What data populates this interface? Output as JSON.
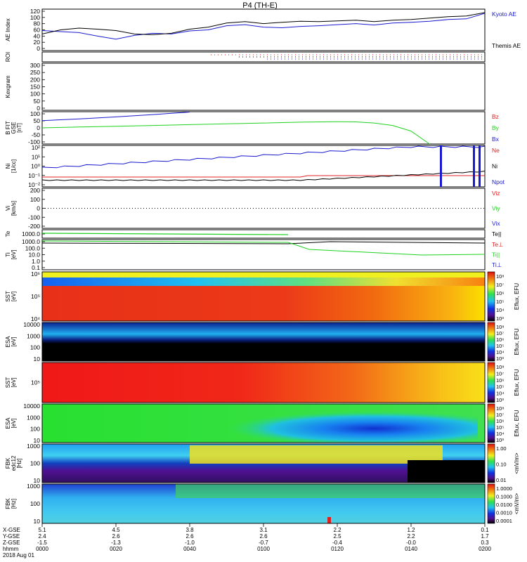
{
  "title": "P4 (TH-E)",
  "colors": {
    "red": "#e02020",
    "green": "#1fd21f",
    "blue": "#1a1ad0",
    "black": "#000000"
  },
  "panels": [
    {
      "id": "ae",
      "ylabel": [
        "AE Index"
      ],
      "ticks": [
        "120",
        "100",
        "80",
        "60",
        "40",
        "20",
        "0"
      ],
      "legend": [
        {
          "t": "Kyoto AE",
          "c": "blue"
        },
        {
          "t": "Themis AE",
          "c": "black"
        }
      ]
    },
    {
      "id": "roi",
      "ylabel": [
        "ROI"
      ],
      "ticks": [],
      "legend": []
    },
    {
      "id": "kgram",
      "ylabel": [
        "Kexgram"
      ],
      "ticks": [
        "300",
        "250",
        "200",
        "150",
        "100",
        "50",
        "0"
      ],
      "legend": []
    },
    {
      "id": "bfit",
      "ylabel": [
        "B FIT",
        "GSE",
        "[nT]"
      ],
      "ticks": [
        "100",
        "50",
        "0",
        "-50",
        "-100"
      ],
      "legend": [
        {
          "t": "Bz",
          "c": "red"
        },
        {
          "t": "By",
          "c": "green"
        },
        {
          "t": "Bx",
          "c": "blue"
        }
      ]
    },
    {
      "id": "ni",
      "ylabel": [
        "Ni",
        "[1/cc]"
      ],
      "ticks": [
        "10²",
        "10¹",
        "10⁰",
        "10⁻¹",
        "10⁻²"
      ],
      "legend": [
        {
          "t": "Ne",
          "c": "red"
        },
        {
          "t": "Ni",
          "c": "black"
        },
        {
          "t": "Npot",
          "c": "blue"
        }
      ]
    },
    {
      "id": "vi",
      "ylabel": [
        "Vi",
        "[km/s]"
      ],
      "ticks": [
        "200",
        "100",
        "0",
        "-100",
        "-200"
      ],
      "legend": [
        {
          "t": "Viz",
          "c": "red"
        },
        {
          "t": "Viy",
          "c": "green"
        },
        {
          "t": "Vix",
          "c": "blue"
        }
      ]
    },
    {
      "id": "te",
      "ylabel": [
        "Te"
      ],
      "ticks": [
        "1000.0"
      ],
      "legend": [
        {
          "t": "Te||",
          "c": "black"
        }
      ]
    },
    {
      "id": "ti",
      "ylabel": [
        "Ti",
        "[eV]"
      ],
      "ticks": [
        "1000.0",
        "100.0",
        "10.0",
        "1.0",
        "0.1"
      ],
      "legend": [
        {
          "t": "Te⊥",
          "c": "red"
        },
        {
          "t": "Ti||",
          "c": "green"
        },
        {
          "t": "Ti⊥",
          "c": "blue"
        }
      ]
    },
    {
      "id": "sst1",
      "ylabel": [
        "SST",
        "[eV]"
      ],
      "ticks": [
        "10⁶",
        "10⁵",
        "10⁴"
      ],
      "legend": []
    },
    {
      "id": "esa1",
      "ylabel": [
        "ESA",
        "[eV]"
      ],
      "ticks": [
        "10000",
        "1000",
        "100",
        "10"
      ],
      "legend": []
    },
    {
      "id": "sst2",
      "ylabel": [
        "SST",
        "[eV]"
      ],
      "ticks": [
        "10⁵"
      ],
      "legend": []
    },
    {
      "id": "esa2",
      "ylabel": [
        "ESA",
        "[eV]"
      ],
      "ticks": [
        "10000",
        "1000",
        "100",
        "10"
      ],
      "legend": []
    },
    {
      "id": "fbk1",
      "ylabel": [
        "FBK",
        "edc12",
        "[Hz]"
      ],
      "ticks": [
        "1000",
        "100",
        "10"
      ],
      "legend": []
    },
    {
      "id": "fbk2",
      "ylabel": [
        "FBK",
        "[Hz]"
      ],
      "ticks": [
        "1000",
        "100",
        "10"
      ],
      "legend": []
    }
  ],
  "colorbars": [
    {
      "label": "Eflux, EFU",
      "ticks": [
        "10⁸",
        "10⁷",
        "10⁶",
        "10⁵",
        "10⁴",
        "10³"
      ]
    },
    {
      "label": "Eflux, EFU",
      "ticks": [
        "10⁸",
        "10⁷",
        "10⁶",
        "10⁵",
        "10⁴",
        "10³"
      ]
    },
    {
      "label": "Eflux, EFU",
      "ticks": [
        "10⁸",
        "10⁷",
        "10⁶",
        "10⁵",
        "10⁴",
        "10³"
      ]
    },
    {
      "label": "Eflux, EFU",
      "ticks": [
        "10⁸",
        "10⁷",
        "10⁶",
        "10⁵",
        "10⁴",
        "10³"
      ]
    },
    {
      "label": "<mV/m>",
      "ticks": [
        "1.00",
        "0.10",
        "0.01"
      ]
    },
    {
      "label": "<mV/m>",
      "ticks": [
        "1.0000",
        "0.1000",
        "0.0100",
        "0.0010",
        "0.0001"
      ]
    }
  ],
  "footer": {
    "row_labels": [
      "X-GSE",
      "Y-GSE",
      "Z-GSE",
      "hhmm",
      "2018 Aug 01"
    ],
    "columns": [
      [
        "5.1",
        "2.4",
        "-1.5",
        "0000"
      ],
      [
        "4.5",
        "2.6",
        "-1.3",
        "0020"
      ],
      [
        "3.8",
        "2.6",
        "-1.0",
        "0040"
      ],
      [
        "3.1",
        "2.6",
        "-0.7",
        "0100"
      ],
      [
        "2.2",
        "2.5",
        "-0.4",
        "0120"
      ],
      [
        "1.2",
        "2.2",
        "-0.0",
        "0140"
      ],
      [
        "0.1",
        "1.7",
        "0.3",
        "0200"
      ]
    ]
  },
  "chart_data": {
    "type": "line",
    "x_hhmm": [
      "0000",
      "0020",
      "0040",
      "0100",
      "0120",
      "0140",
      "0200"
    ],
    "series": [
      {
        "name": "Kyoto AE",
        "x": [
          0,
          5,
          10,
          15,
          20,
          25,
          30,
          35,
          40,
          45,
          50,
          55,
          60,
          65,
          70,
          75,
          80,
          85,
          90,
          95,
          100,
          105,
          110,
          115,
          120
        ],
        "values": [
          58,
          55,
          52,
          42,
          33,
          44,
          50,
          48,
          57,
          60,
          72,
          75,
          68,
          66,
          70,
          72,
          75,
          78,
          74,
          80,
          82,
          85,
          90,
          92,
          108
        ]
      },
      {
        "name": "Themis AE",
        "x": [
          0,
          5,
          10,
          15,
          20,
          25,
          30,
          35,
          40,
          45,
          50,
          55,
          60,
          65,
          70,
          75,
          80,
          85,
          90,
          95,
          100,
          105,
          110,
          115,
          120
        ],
        "values": [
          48,
          60,
          65,
          62,
          58,
          48,
          46,
          50,
          62,
          68,
          80,
          84,
          78,
          82,
          85,
          84,
          86,
          88,
          84,
          88,
          90,
          94,
          98,
          100,
          110
        ]
      },
      {
        "name": "By",
        "x": [
          0,
          10,
          20,
          30,
          40,
          50,
          60,
          70,
          80,
          85,
          90,
          95,
          100,
          105
        ],
        "values": [
          0,
          5,
          10,
          15,
          20,
          25,
          30,
          35,
          38,
          37,
          30,
          15,
          -20,
          -100
        ]
      },
      {
        "name": "Bx",
        "x": [
          0,
          10,
          20,
          30,
          40
        ],
        "values": [
          45,
          55,
          68,
          82,
          98
        ]
      }
    ],
    "ylim_ae": [
      0,
      120
    ],
    "ylim_b": [
      -100,
      100
    ]
  }
}
